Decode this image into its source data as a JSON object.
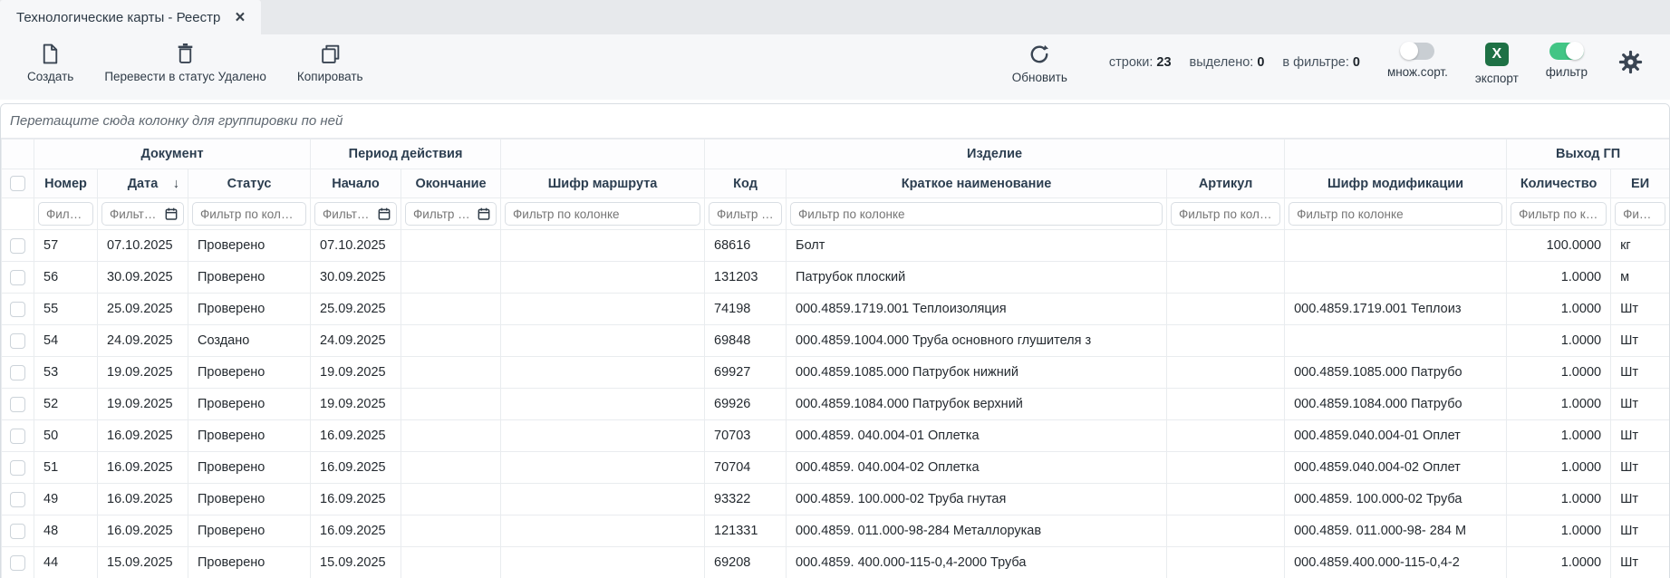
{
  "tab": {
    "title": "Технологические карты - Реестр",
    "close_icon": "×"
  },
  "toolbar": {
    "create_label": "Создать",
    "delete_label": "Перевести в статус Удалено",
    "copy_label": "Копировать",
    "refresh_label": "Обновить",
    "counters": {
      "rows_label": "строки:",
      "rows_value": "23",
      "selected_label": "выделено:",
      "selected_value": "0",
      "filtered_label": "в фильтре:",
      "filtered_value": "0"
    },
    "multisort_label": "множ.сорт.",
    "multisort_state": "off",
    "export_label": "экспорт",
    "export_letter": "x",
    "filter_label": "фильтр",
    "filter_state": "on"
  },
  "grouping_hint": "Перетащите сюда колонку для группировки по ней",
  "table": {
    "sort_arrow": "↓",
    "groups": [
      {
        "label": "Документ",
        "span": 3
      },
      {
        "label": "Период действия",
        "span": 2
      },
      {
        "label": "",
        "span": 1
      },
      {
        "label": "Изделие",
        "span": 3
      },
      {
        "label": "",
        "span": 1
      },
      {
        "label": "Выход ГП",
        "span": 2
      }
    ],
    "columns": [
      {
        "label": "Номер",
        "placeholder": "Фильтр по колонке"
      },
      {
        "label": "Дата",
        "placeholder": "Фильтр по колонке",
        "calendar": true,
        "sorted": "desc"
      },
      {
        "label": "Статус",
        "placeholder": "Фильтр по колонке"
      },
      {
        "label": "Начало",
        "placeholder": "Фильтр по колонке",
        "calendar": true
      },
      {
        "label": "Окончание",
        "placeholder": "Фильтр по колонке",
        "calendar": true
      },
      {
        "label": "Шифр маршрута",
        "placeholder": "Фильтр по колонке"
      },
      {
        "label": "Код",
        "placeholder": "Фильтр по колонке"
      },
      {
        "label": "Краткое наименование",
        "placeholder": "Фильтр по колонке"
      },
      {
        "label": "Артикул",
        "placeholder": "Фильтр по колонке"
      },
      {
        "label": "Шифр модификации",
        "placeholder": "Фильтр по колонке"
      },
      {
        "label": "Количество",
        "placeholder": "Фильтр по колонке",
        "align": "right"
      },
      {
        "label": "ЕИ",
        "placeholder": "Фильтр по колонке"
      }
    ],
    "rows": [
      [
        "57",
        "07.10.2025",
        "Проверено",
        "07.10.2025",
        "",
        "",
        "68616",
        "Болт",
        "",
        "",
        "100.0000",
        "кг"
      ],
      [
        "56",
        "30.09.2025",
        "Проверено",
        "30.09.2025",
        "",
        "",
        "131203",
        "Патрубок плоский",
        "",
        "",
        "1.0000",
        "м"
      ],
      [
        "55",
        "25.09.2025",
        "Проверено",
        "25.09.2025",
        "",
        "",
        "74198",
        "000.4859.1719.001 Теплоизоляция",
        "",
        "000.4859.1719.001 Теплоиз",
        "1.0000",
        "Шт"
      ],
      [
        "54",
        "24.09.2025",
        "Создано",
        "24.09.2025",
        "",
        "",
        "69848",
        "000.4859.1004.000 Труба основного глушителя з",
        "",
        "",
        "1.0000",
        "Шт"
      ],
      [
        "53",
        "19.09.2025",
        "Проверено",
        "19.09.2025",
        "",
        "",
        "69927",
        "000.4859.1085.000 Патрубок нижний",
        "",
        "000.4859.1085.000 Патрубо",
        "1.0000",
        "Шт"
      ],
      [
        "52",
        "19.09.2025",
        "Проверено",
        "19.09.2025",
        "",
        "",
        "69926",
        "000.4859.1084.000 Патрубок верхний",
        "",
        "000.4859.1084.000 Патрубо",
        "1.0000",
        "Шт"
      ],
      [
        "50",
        "16.09.2025",
        "Проверено",
        "16.09.2025",
        "",
        "",
        "70703",
        "000.4859. 040.004-01 Оплетка",
        "",
        "000.4859.040.004-01 Оплет",
        "1.0000",
        "Шт"
      ],
      [
        "51",
        "16.09.2025",
        "Проверено",
        "16.09.2025",
        "",
        "",
        "70704",
        "000.4859. 040.004-02 Оплетка",
        "",
        "000.4859.040.004-02 Оплет",
        "1.0000",
        "Шт"
      ],
      [
        "49",
        "16.09.2025",
        "Проверено",
        "16.09.2025",
        "",
        "",
        "93322",
        "000.4859. 100.000-02 Труба гнутая",
        "",
        "000.4859. 100.000-02 Труба",
        "1.0000",
        "Шт"
      ],
      [
        "48",
        "16.09.2025",
        "Проверено",
        "16.09.2025",
        "",
        "",
        "121331",
        "000.4859. 011.000-98-284 Металлорукав",
        "",
        "000.4859. 011.000-98- 284 М",
        "1.0000",
        "Шт"
      ],
      [
        "44",
        "15.09.2025",
        "Проверено",
        "15.09.2025",
        "",
        "",
        "69208",
        "000.4859. 400.000-115-0,4-2000 Труба",
        "",
        "000.4859.400.000-115-0,4-2",
        "1.0000",
        "Шт"
      ]
    ]
  },
  "colors": {
    "toolbar_bg": "#f6f7f9",
    "tabbar_bg": "#e7e9ec",
    "icon_dark": "#3a4553",
    "toggle_on_green": "#42c585",
    "excel_green": "#1e7145",
    "header_text": "#2c3e50"
  }
}
